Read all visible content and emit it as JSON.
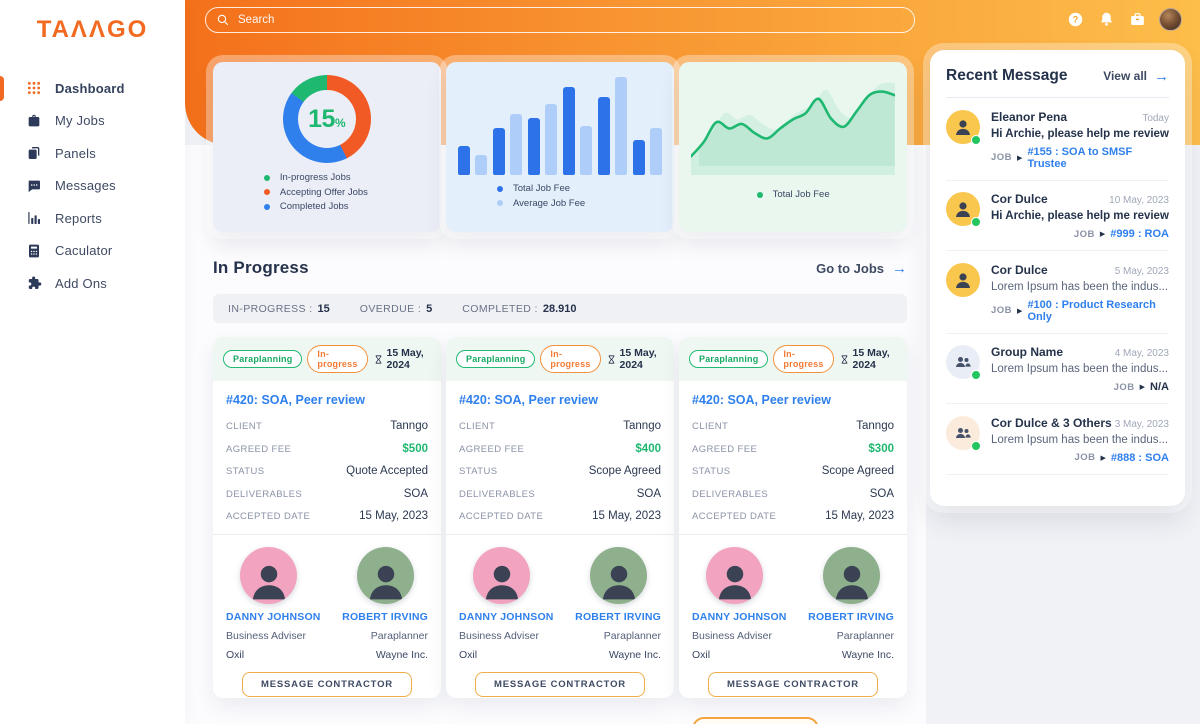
{
  "brand": {
    "name": "TANNGO",
    "display": "TAΛΛGO"
  },
  "sidebar": {
    "items": [
      {
        "label": "Dashboard",
        "icon": "grid-icon",
        "active": true
      },
      {
        "label": "My Jobs",
        "icon": "briefcase-icon",
        "active": false
      },
      {
        "label": "Panels",
        "icon": "panels-icon",
        "active": false
      },
      {
        "label": "Messages",
        "icon": "chat-icon",
        "active": false
      },
      {
        "label": "Reports",
        "icon": "bar-chart-icon",
        "active": false
      },
      {
        "label": "Caculator",
        "icon": "calculator-icon",
        "active": false
      },
      {
        "label": "Add Ons",
        "icon": "puzzle-icon",
        "active": false
      }
    ]
  },
  "header": {
    "search_placeholder": "Search",
    "icons": [
      "help-icon",
      "bell-icon",
      "briefcase-icon",
      "user-avatar"
    ]
  },
  "chart_data": [
    {
      "type": "donut",
      "center_value": "15",
      "center_unit": "%",
      "rotate_deg": -54,
      "legend_position": "bottom",
      "segments": [
        {
          "label": "In-progress Jobs",
          "value": 15,
          "color": "#1FB871"
        },
        {
          "label": "Accepting Offer Jobs",
          "value": 42.5,
          "color": "#F15A24"
        },
        {
          "label": "Completed Jobs",
          "value": 42.5,
          "color": "#2F80ED"
        }
      ]
    },
    {
      "type": "bar",
      "arrangement": "interleaved-pairs",
      "axes": false,
      "legend_position": "bottom",
      "series": [
        {
          "name": "Total Job Fee",
          "color": "#2D72E9",
          "values": [
            30,
            48,
            58,
            90,
            80,
            36
          ]
        },
        {
          "name": "Average Job Fee",
          "color": "#AECDF9",
          "values": [
            20,
            62,
            72,
            50,
            100,
            48
          ]
        }
      ]
    },
    {
      "type": "line",
      "area_fill": true,
      "axes": false,
      "legend_position": "bottom",
      "series": [
        {
          "name": "Total Job Fee",
          "color": "#1FB871",
          "values": [
            14,
            30,
            52,
            45,
            50,
            40,
            34,
            45,
            55,
            62,
            78,
            56,
            47,
            64,
            82,
            86,
            82
          ]
        }
      ]
    }
  ],
  "in_progress": {
    "title": "In Progress",
    "link_label": "Go to Jobs",
    "link_arrow": "→",
    "stats": [
      {
        "label": "IN-PROGRESS :",
        "value": "15"
      },
      {
        "label": "OVERDUE :",
        "value": "5"
      },
      {
        "label": "COMPLETED :",
        "value": "28.910"
      }
    ],
    "labels": {
      "client": "CLIENT",
      "agreed_fee": "AGREED FEE",
      "status": "STATUS",
      "deliverables": "DELIVERABLES",
      "accepted_date": "ACCEPTED DATE"
    },
    "cards": [
      {
        "category": "Paraplanning",
        "state": "In-progress",
        "due_date": "15 May, 2024",
        "title": "#420: SOA, Peer review",
        "client": "Tanngo",
        "agreed_fee": "$500",
        "status": "Quote Accepted",
        "deliverables": "SOA",
        "accepted_date": "15 May, 2023",
        "people": [
          {
            "name": "DANNY JOHNSON",
            "role": "Business Adviser",
            "company": "Oxil",
            "avatar_color": "#F2A3C0"
          },
          {
            "name": "ROBERT IRVING",
            "role": "Paraplanner",
            "company": "Wayne Inc.",
            "avatar_color": "#8FB08C"
          }
        ],
        "button_label": "MESSAGE CONTRACTOR"
      },
      {
        "category": "Paraplanning",
        "state": "In-progress",
        "due_date": "15 May, 2024",
        "title": "#420: SOA, Peer review",
        "client": "Tanngo",
        "agreed_fee": "$400",
        "status": "Scope Agreed",
        "deliverables": "SOA",
        "accepted_date": "15 May, 2023",
        "people": [
          {
            "name": "DANNY JOHNSON",
            "role": "Business Adviser",
            "company": "Oxil",
            "avatar_color": "#F2A3C0"
          },
          {
            "name": "ROBERT IRVING",
            "role": "Paraplanner",
            "company": "Wayne Inc.",
            "avatar_color": "#8FB08C"
          }
        ],
        "button_label": "MESSAGE CONTRACTOR"
      },
      {
        "category": "Paraplanning",
        "state": "In-progress",
        "due_date": "15 May, 2024",
        "title": "#420: SOA, Peer review",
        "client": "Tanngo",
        "agreed_fee": "$300",
        "status": "Scope Agreed",
        "deliverables": "SOA",
        "accepted_date": "15 May, 2023",
        "people": [
          {
            "name": "DANNY JOHNSON",
            "role": "Business Adviser",
            "company": "Oxil",
            "avatar_color": "#F2A3C0"
          },
          {
            "name": "ROBERT IRVING",
            "role": "Paraplanner",
            "company": "Wayne Inc.",
            "avatar_color": "#8FB08C"
          }
        ],
        "button_label": "MESSAGE CONTRACTOR"
      }
    ]
  },
  "messages": {
    "title": "Recent Message",
    "view_all_label": "View all",
    "view_all_arrow": "→",
    "job_label": "JOB",
    "items": [
      {
        "name": "Eleanor Pena",
        "time": "Today",
        "text": "Hi Archie, please help me review...",
        "job_ref": "#155 : SOA to SMSF Trustee",
        "job_link": true,
        "unread": true,
        "online": true,
        "avatar": "person",
        "avatar_bg": "#F9C64E"
      },
      {
        "name": "Cor Dulce",
        "time": "10 May, 2023",
        "text": "Hi Archie, please help me review...",
        "job_ref": "#999 : ROA",
        "job_link": true,
        "unread": true,
        "online": true,
        "avatar": "person",
        "avatar_bg": "#F9C64E"
      },
      {
        "name": "Cor Dulce",
        "time": "5 May, 2023",
        "text": "Lorem Ipsum has been the indus...",
        "job_ref": "#100 : Product Research Only",
        "job_link": true,
        "unread": false,
        "online": false,
        "avatar": "person",
        "avatar_bg": "#F9C64E"
      },
      {
        "name": "Group Name",
        "time": "4 May, 2023",
        "text": "Lorem Ipsum has been the indus...",
        "job_ref": "N/A",
        "job_link": false,
        "unread": false,
        "online": true,
        "avatar": "group",
        "avatar_bg": "#E9EEF6"
      },
      {
        "name": "Cor Dulce & 3 Others",
        "time": "3 May, 2023",
        "text": "Lorem Ipsum has been the indus...",
        "job_ref": "#888 : SOA",
        "job_link": true,
        "unread": false,
        "online": true,
        "avatar": "group",
        "avatar_bg": "#FBEBDC"
      }
    ]
  }
}
